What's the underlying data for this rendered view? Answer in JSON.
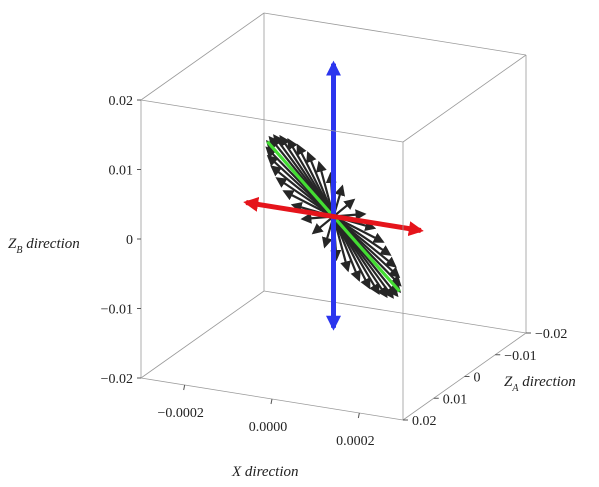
{
  "chart_data": {
    "type": "3d-vector-field",
    "axes": {
      "x": {
        "label": "X direction",
        "range": [
          -0.0003,
          0.0003
        ],
        "ticks": [
          {
            "value": -0.0002,
            "label": "−0.0002"
          },
          {
            "value": 0.0,
            "label": "0.0000"
          },
          {
            "value": 0.0002,
            "label": "0.0002"
          }
        ]
      },
      "za": {
        "label_main": "Z",
        "label_sub": "A",
        "label_rest": " direction",
        "range": [
          -0.02,
          0.02
        ],
        "ticks": [
          {
            "value": 0.02,
            "label": "0.02"
          },
          {
            "value": 0.01,
            "label": "0.01"
          },
          {
            "value": 0.0,
            "label": "0"
          },
          {
            "value": -0.01,
            "label": "−0.01"
          },
          {
            "value": -0.02,
            "label": "−0.02"
          }
        ]
      },
      "zb": {
        "label_main": "Z",
        "label_sub": "B",
        "label_rest": " direction",
        "range": [
          -0.02,
          0.02
        ],
        "ticks": [
          {
            "value": 0.02,
            "label": "0.02"
          },
          {
            "value": 0.01,
            "label": "0.01"
          },
          {
            "value": 0.0,
            "label": "0"
          },
          {
            "value": -0.01,
            "label": "−0.01"
          },
          {
            "value": -0.02,
            "label": "−0.02"
          }
        ]
      }
    },
    "vector_field": {
      "count": 36,
      "color": "#262626",
      "ellipse_x_amplitude": 2e-05,
      "ellipse_za_amplitude": 0.0215,
      "ellipse_zb_amplitude": 0.0175
    },
    "special_vectors": [
      {
        "name": "green",
        "color": "#44dd33",
        "x": [
          0.0,
          0.0
        ],
        "za": [
          -0.0215,
          0.0215
        ],
        "zb": [
          -0.0175,
          0.0175
        ],
        "heads": "none"
      },
      {
        "name": "blue",
        "color": "#2b35ee",
        "x": [
          0.0,
          0.0
        ],
        "za": [
          0.0,
          0.0
        ],
        "zb": [
          -0.016,
          0.022
        ],
        "heads": "both"
      },
      {
        "name": "red",
        "color": "#e5141b",
        "x": [
          -0.0002,
          0.0002
        ],
        "za": [
          0.0,
          0.0
        ],
        "zb": [
          0.0,
          0.0
        ],
        "heads": "both"
      }
    ],
    "grid": false,
    "legend": "none"
  }
}
